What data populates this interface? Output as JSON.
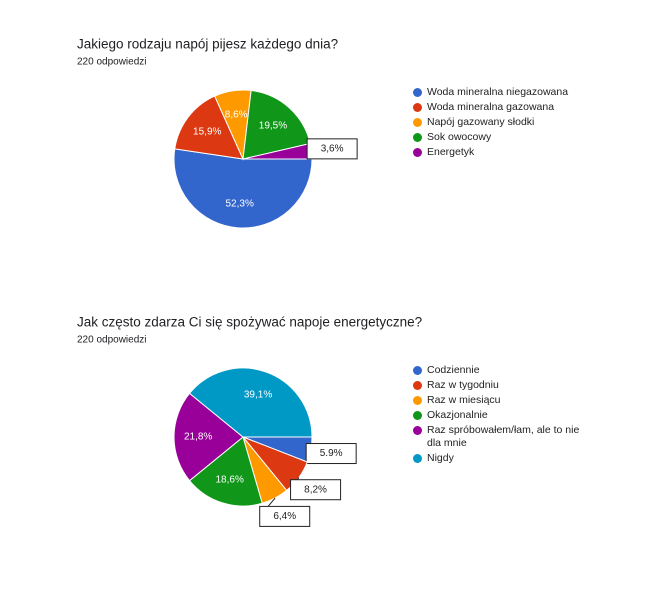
{
  "chart_data": [
    {
      "type": "pie",
      "title": "Jakiego rodzaju napój pijesz każdego dnia?",
      "subtitle": "220 odpowiedzi",
      "categories": [
        "Woda mineralna niegazowana",
        "Woda mineralna gazowana",
        "Napój gazowany słodki",
        "Sok owocowy",
        "Energetyk"
      ],
      "values": [
        52.3,
        15.9,
        8.6,
        19.5,
        3.6
      ],
      "value_labels": [
        "52,3%",
        "15,9%",
        "8,6%",
        "19,5%",
        "3,6%"
      ],
      "colors": [
        "#3366cc",
        "#dc3912",
        "#ff9900",
        "#109618",
        "#990099"
      ]
    },
    {
      "type": "pie",
      "title": "Jak często zdarza Ci się spożywać napoje energetyczne?",
      "subtitle": "220 odpowiedzi",
      "categories": [
        "Codziennie",
        "Raz w tygodniu",
        "Raz w miesiącu",
        "Okazjonalnie",
        "Raz spróbowałem/łam, ale to nie dla mnie",
        "Nigdy"
      ],
      "values": [
        5.9,
        8.2,
        6.4,
        18.6,
        21.8,
        39.1
      ],
      "value_labels": [
        "5.9%",
        "8,2%",
        "6,4%",
        "18,6%",
        "21,8%",
        "39,1%"
      ],
      "colors": [
        "#3366cc",
        "#dc3912",
        "#ff9900",
        "#109618",
        "#990099",
        "#0099c6"
      ]
    }
  ]
}
